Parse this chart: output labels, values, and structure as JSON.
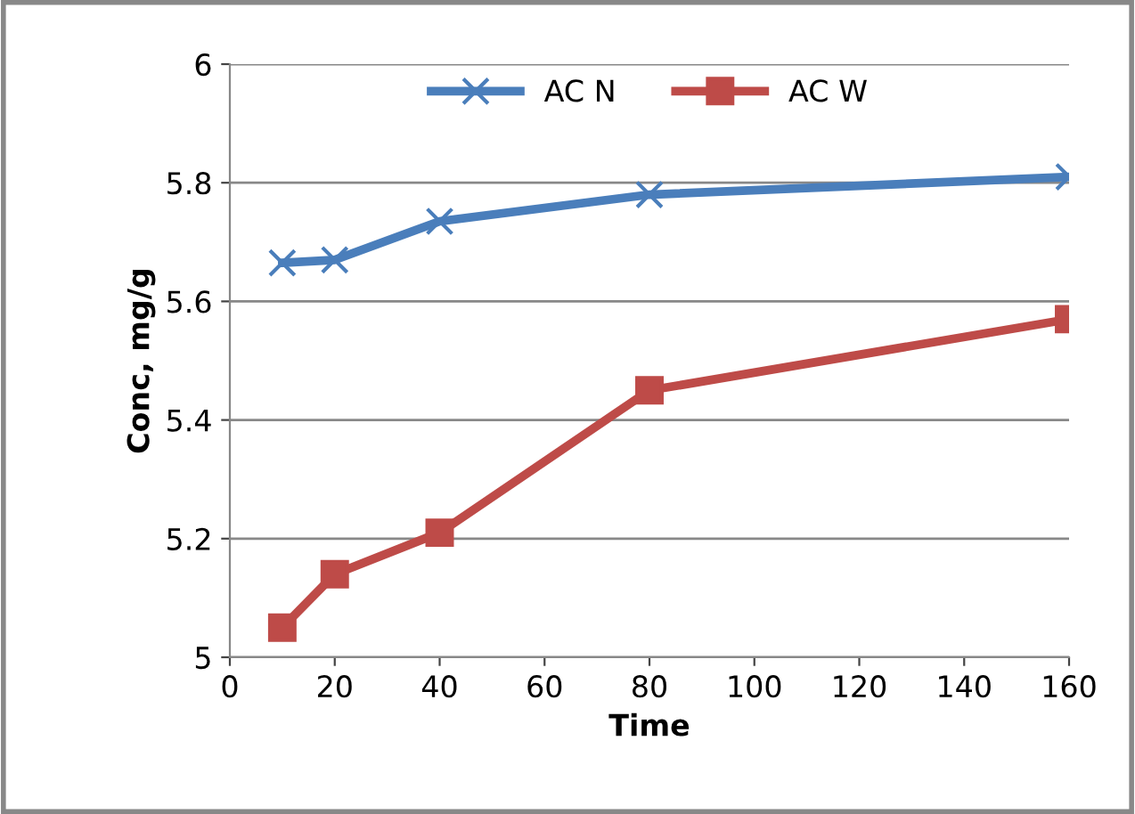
{
  "chart_data": {
    "type": "line",
    "xlabel": "Time",
    "ylabel": "Conc, mg/g",
    "x": [
      10,
      20,
      40,
      80,
      160
    ],
    "series": [
      {
        "name": "AC N",
        "color": "#4a7ebb",
        "marker": "cross",
        "values": [
          5.665,
          5.67,
          5.735,
          5.78,
          5.81
        ]
      },
      {
        "name": "AC W",
        "color": "#be4b48",
        "marker": "square",
        "values": [
          5.05,
          5.14,
          5.21,
          5.45,
          5.57
        ]
      }
    ],
    "xlim": [
      0,
      160
    ],
    "xticks": [
      0,
      20,
      40,
      60,
      80,
      100,
      120,
      140,
      160
    ],
    "ylim": [
      5,
      6
    ],
    "yticks": [
      5,
      5.2,
      5.4,
      5.6,
      5.8,
      6
    ],
    "grid": "y",
    "legend": "top"
  }
}
